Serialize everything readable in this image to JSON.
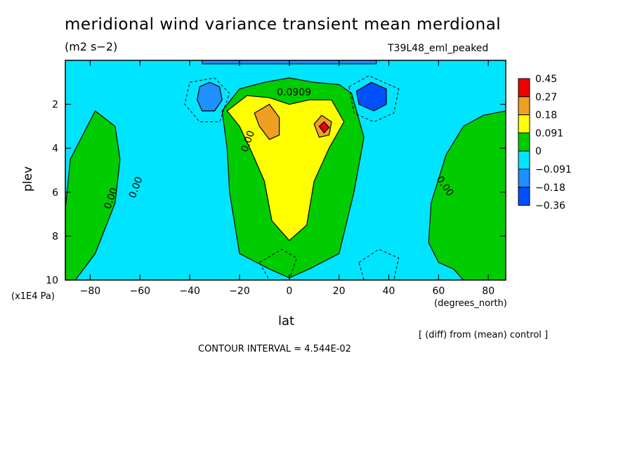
{
  "chart_data": {
    "type": "heatmap",
    "title": "meridional wind variance transient mean merdional",
    "units": "(m2 s−2)",
    "model_label": "T39L48_eml_peaked",
    "xlabel": "lat",
    "x_units": "(degrees_north)",
    "ylabel": "plev",
    "y_units": "(x1E4 Pa)",
    "xlim": [
      -90,
      87
    ],
    "ylim": [
      10,
      0
    ],
    "x_ticks": [
      -80,
      -60,
      -40,
      -20,
      0,
      20,
      40,
      60,
      80
    ],
    "y_ticks": [
      2,
      4,
      6,
      8,
      10
    ],
    "legend": {
      "position": "right",
      "levels": [
        "0.45",
        "0.27",
        "0.18",
        "0.091",
        "0",
        "−0.091",
        "−0.18",
        "−0.36"
      ],
      "colors": [
        "#ee0000",
        "#f0a020",
        "#ffff00",
        "#00cc00",
        "#00e5ff",
        "#1e90ff",
        "#0050ff"
      ]
    },
    "contour_labels": [
      "0.0909",
      "0.00",
      "0.00",
      "0.00",
      "0.00"
    ],
    "background_value_color": "#00e5ff",
    "regions": [
      {
        "name": "south-polar",
        "level": "0 to 0.091",
        "color": "#00cc00",
        "points": [
          [
            -90,
            10
          ],
          [
            -90,
            6.8
          ],
          [
            -88,
            4.5
          ],
          [
            -78,
            2.3
          ],
          [
            -70,
            3.0
          ],
          [
            -68,
            4.5
          ],
          [
            -70,
            6.5
          ],
          [
            -78,
            8.8
          ],
          [
            -86,
            10
          ]
        ]
      },
      {
        "name": "north-polar",
        "level": "0 to 0.091",
        "color": "#00cc00",
        "points": [
          [
            87,
            10
          ],
          [
            87,
            2.3
          ],
          [
            78,
            2.5
          ],
          [
            70,
            3.0
          ],
          [
            63,
            4.3
          ],
          [
            57,
            6.5
          ],
          [
            56,
            8.3
          ],
          [
            60,
            9.2
          ],
          [
            66,
            9.5
          ],
          [
            70,
            10
          ]
        ]
      },
      {
        "name": "tropical",
        "level": "0 to 0.091",
        "color": "#00cc00",
        "points": [
          [
            -27,
            2.3
          ],
          [
            -20,
            1.3
          ],
          [
            -10,
            1.0
          ],
          [
            0,
            0.8
          ],
          [
            10,
            1.0
          ],
          [
            20,
            1.1
          ],
          [
            25,
            1.5
          ],
          [
            30,
            3.5
          ],
          [
            26,
            6.0
          ],
          [
            20,
            8.8
          ],
          [
            8,
            9.5
          ],
          [
            0,
            9.9
          ],
          [
            -8,
            9.5
          ],
          [
            -20,
            8.8
          ],
          [
            -24,
            6.0
          ],
          [
            -25,
            4.0
          ]
        ]
      },
      {
        "name": "tropical-inner",
        "level": "0.091 to 0.18",
        "color": "#ffff00",
        "points": [
          [
            -25,
            2.3
          ],
          [
            -17,
            1.6
          ],
          [
            -8,
            1.7
          ],
          [
            0,
            2.0
          ],
          [
            8,
            1.8
          ],
          [
            17,
            1.8
          ],
          [
            22,
            2.8
          ],
          [
            16,
            4.0
          ],
          [
            10,
            5.5
          ],
          [
            7,
            7.5
          ],
          [
            0,
            8.2
          ],
          [
            -7,
            7.3
          ],
          [
            -10,
            5.5
          ],
          [
            -15,
            4.2
          ],
          [
            -20,
            3.0
          ]
        ]
      },
      {
        "name": "core-left",
        "level": "0.18 to 0.27",
        "color": "#f0a020",
        "points": [
          [
            -14,
            2.4
          ],
          [
            -8,
            2.0
          ],
          [
            -4,
            2.6
          ],
          [
            -4,
            3.4
          ],
          [
            -8,
            3.6
          ],
          [
            -12,
            3.0
          ]
        ]
      },
      {
        "name": "core-right",
        "level": "0.18 to 0.27",
        "color": "#f0a020",
        "points": [
          [
            10,
            2.9
          ],
          [
            13,
            2.5
          ],
          [
            17,
            2.8
          ],
          [
            16,
            3.4
          ],
          [
            12,
            3.5
          ]
        ]
      },
      {
        "name": "max-right",
        "level": "0.27 to 0.45",
        "color": "#ee0000",
        "points": [
          [
            12,
            3.0
          ],
          [
            14,
            2.8
          ],
          [
            16,
            3.05
          ],
          [
            14,
            3.3
          ]
        ]
      },
      {
        "name": "neg-blob-south",
        "level": "-0.18 to -0.091",
        "color": "#1e90ff",
        "points": [
          [
            -36,
            1.2
          ],
          [
            -32,
            1.0
          ],
          [
            -28,
            1.2
          ],
          [
            -27,
            1.8
          ],
          [
            -30,
            2.3
          ],
          [
            -35,
            2.3
          ],
          [
            -37,
            1.8
          ]
        ]
      },
      {
        "name": "neg-blob-north",
        "level": "-0.36 to -0.18",
        "color": "#0050ff",
        "points": [
          [
            27,
            1.4
          ],
          [
            33,
            1.0
          ],
          [
            39,
            1.3
          ],
          [
            39,
            2.0
          ],
          [
            34,
            2.3
          ],
          [
            28,
            2.0
          ]
        ]
      }
    ]
  }
}
